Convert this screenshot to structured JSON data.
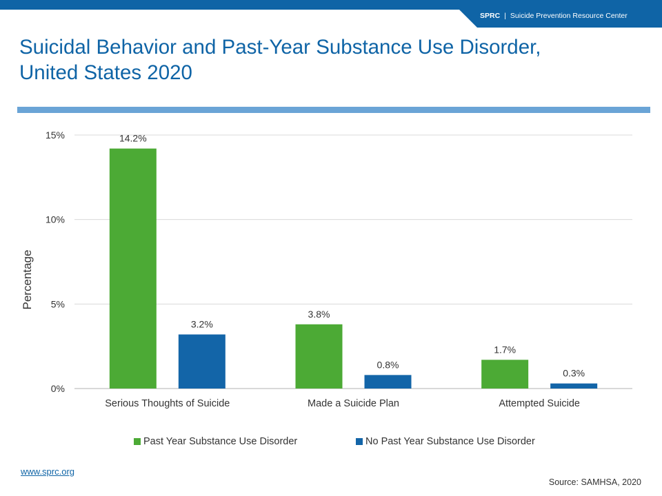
{
  "header": {
    "org": "SPRC",
    "separator": "|",
    "org_full": "Suicide Prevention Resource Center"
  },
  "title_line1": "Suicidal Behavior and Past-Year Substance Use Disorder,",
  "title_line2": "United States 2020",
  "colors": {
    "brand_blue": "#0f64a6",
    "rule_blue": "#6aa4d6",
    "series_green": "#4caa35",
    "series_blue": "#1365a8"
  },
  "chart_data": {
    "type": "bar",
    "categories": [
      "Serious Thoughts of Suicide",
      "Made a Suicide Plan",
      "Attempted Suicide"
    ],
    "series": [
      {
        "name": "Past Year Substance Use Disorder",
        "values": [
          14.2,
          3.8,
          1.7
        ],
        "labels": [
          "14.2%",
          "3.8%",
          "1.7%"
        ],
        "color": "#4caa35"
      },
      {
        "name": "No Past Year Substance Use Disorder",
        "values": [
          3.2,
          0.8,
          0.3
        ],
        "labels": [
          "3.2%",
          "0.8%",
          "0.3%"
        ],
        "color": "#1365a8"
      }
    ],
    "ylabel": "Percentage",
    "ylim": [
      0,
      15
    ],
    "yticks": [
      0,
      5,
      10,
      15
    ],
    "ytick_labels": [
      "0%",
      "5%",
      "10%",
      "15%"
    ],
    "grid": true,
    "legend": "bottom"
  },
  "footer": {
    "link": "www.sprc.org",
    "source": "Source: SAMHSA, 2020"
  }
}
